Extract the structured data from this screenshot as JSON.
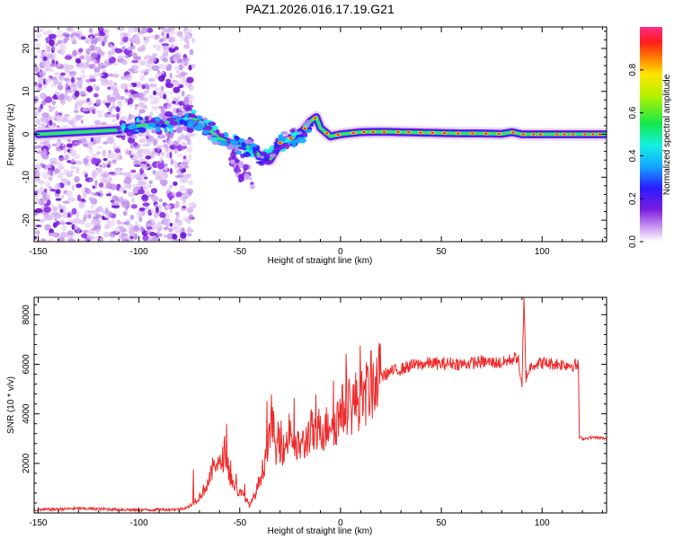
{
  "title": "PAZ1.2026.016.17.19.G21",
  "colors": {
    "snr_line": "#ee2b2b",
    "frame": "#000000",
    "ridge_low": "#7b1de0",
    "ridge_high": "#ff1c1c"
  },
  "chart_data": [
    {
      "type": "heatmap",
      "name": "spectrogram",
      "xlabel": "Height of straight line (km)",
      "ylabel": "Frequency (Hz)",
      "xlim": [
        -152,
        132
      ],
      "ylim": [
        -25,
        25
      ],
      "xticks": [
        -150,
        -100,
        -50,
        0,
        50,
        100
      ],
      "yticks": [
        -20,
        -10,
        0,
        10,
        20
      ],
      "colorbar": {
        "label": "Normalized spectral amplitude",
        "range": [
          0,
          1
        ],
        "ticks": [
          "0.0",
          "0.2",
          "0.4",
          "0.6",
          "0.8"
        ],
        "colormap": "rainbow (white-violet-blue-cyan-green-yellow-red-pink)"
      },
      "ridge": {
        "x": [
          -150,
          -130,
          -110,
          -100,
          -90,
          -80,
          -75,
          -70,
          -65,
          -60,
          -55,
          -50,
          -45,
          -40,
          -35,
          -30,
          -25,
          -20,
          -15,
          -12,
          -10,
          -5,
          0,
          10,
          20,
          30,
          40,
          50,
          60,
          70,
          80,
          85,
          90,
          100,
          110,
          120,
          132
        ],
        "freq": [
          0,
          0.5,
          1,
          2,
          2.5,
          3,
          4,
          3,
          1,
          -1,
          -2,
          -2.5,
          -3,
          -5,
          -6,
          -2,
          -1,
          0,
          3,
          4,
          1.5,
          -0.5,
          0,
          0.5,
          0.6,
          0.5,
          0.4,
          0.3,
          0.2,
          0.2,
          0.1,
          0.5,
          0,
          0,
          0,
          0,
          0
        ]
      },
      "noise_region_x": [
        -152,
        -75
      ],
      "faint_tail": {
        "x": [
          -52,
          -45
        ],
        "freq": [
          -5,
          -12
        ]
      }
    },
    {
      "type": "line",
      "name": "snr",
      "xlabel": "Height of straight line (km)",
      "ylabel": "SNR (10 * v/v)",
      "xlim": [
        -152,
        132
      ],
      "ylim": [
        0,
        8700
      ],
      "xticks": [
        -150,
        -100,
        -50,
        0,
        50,
        100
      ],
      "yticks": [
        2000,
        4000,
        6000,
        8000
      ],
      "series": [
        {
          "name": "SNR",
          "x": [
            -152,
            -130,
            -100,
            -80,
            -75,
            -70,
            -65,
            -62,
            -60,
            -57,
            -55,
            -52,
            -50,
            -48,
            -45,
            -42,
            -40,
            -38,
            -36,
            -35,
            -34,
            -33,
            -32,
            -30,
            -28,
            -25,
            -22,
            -20,
            -18,
            -15,
            -12,
            -10,
            -8,
            -5,
            -3,
            0,
            3,
            5,
            8,
            10,
            15,
            20,
            25,
            30,
            35,
            40,
            45,
            50,
            55,
            60,
            70,
            80,
            85,
            88,
            90,
            91,
            92,
            95,
            100,
            110,
            118,
            118.5,
            120,
            125,
            132
          ],
          "y": [
            120,
            180,
            120,
            150,
            250,
            650,
            1300,
            2200,
            1800,
            2600,
            1500,
            1000,
            800,
            700,
            300,
            800,
            1400,
            1900,
            3000,
            2800,
            4200,
            3000,
            2400,
            2800,
            2500,
            3400,
            2500,
            2800,
            2700,
            3400,
            2900,
            3700,
            3200,
            3900,
            3600,
            4000,
            4400,
            4200,
            4600,
            4500,
            5100,
            5500,
            5700,
            5800,
            5950,
            6000,
            6050,
            6000,
            6050,
            6000,
            6100,
            6050,
            6200,
            6300,
            5000,
            8600,
            5500,
            6000,
            6050,
            6000,
            5950,
            3050,
            3000,
            3050,
            3000
          ]
        }
      ]
    }
  ]
}
